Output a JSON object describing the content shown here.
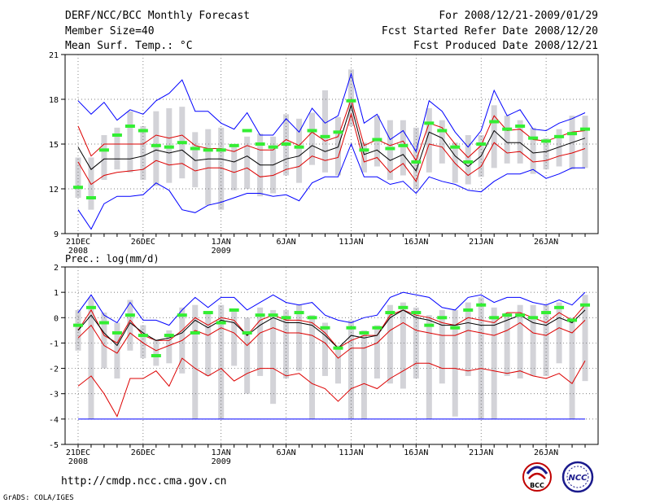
{
  "header": {
    "title": "DERF/NCC/BCC Monthly Forecast",
    "member_size": "Member Size=40",
    "variable": "Mean Surf. Temp.: °C",
    "forecast_range": "For 2008/12/21-2009/01/29",
    "start_ref": "Fcst Started Refer Date 2008/12/20",
    "produced": "Fcst Produced Date 2008/12/21"
  },
  "footer": {
    "url": "http://cmdp.ncc.cma.gov.cn",
    "credit": "GrADS: COLA/IGES",
    "logo1_text": "BCC",
    "logo2_text": "NCC"
  },
  "colors": {
    "blue": "#0000ff",
    "red": "#dd0000",
    "black": "#000000",
    "green": "#33ee33",
    "bar": "#d3d3d8",
    "grid": "#555555"
  },
  "chart_data": [
    {
      "type": "line",
      "title": "Mean Surf. Temp.: °C",
      "ylim": [
        9,
        21
      ],
      "yticks": [
        "9",
        "12",
        "15",
        "18",
        "21"
      ],
      "xlabels": [
        "21DEC",
        "26DEC",
        "1JAN",
        "6JAN",
        "11JAN",
        "16JAN",
        "21JAN",
        "26JAN"
      ],
      "xlabel_days": [
        1,
        6,
        12,
        17,
        22,
        27,
        32,
        37
      ],
      "xyear_labels": [
        {
          "day": 1,
          "text": "2008"
        },
        {
          "day": 12,
          "text": "2009"
        }
      ],
      "series": [
        {
          "name": "max",
          "color": "blue",
          "values": [
            17.9,
            17.0,
            17.8,
            16.6,
            17.3,
            17.0,
            17.9,
            18.4,
            19.3,
            17.2,
            17.2,
            16.4,
            16.0,
            17.1,
            15.6,
            15.6,
            16.7,
            15.8,
            17.4,
            16.4,
            16.9,
            19.7,
            16.4,
            17.0,
            15.3,
            15.9,
            14.5,
            17.9,
            17.2,
            15.8,
            14.8,
            15.9,
            18.6,
            16.9,
            17.3,
            16.0,
            15.9,
            16.4,
            16.7,
            17.1
          ]
        },
        {
          "name": "upper",
          "color": "red",
          "values": [
            16.2,
            14.2,
            15.0,
            15.0,
            15.0,
            15.0,
            15.6,
            15.4,
            15.6,
            14.9,
            14.7,
            14.7,
            14.5,
            14.9,
            14.6,
            14.6,
            15.3,
            14.9,
            15.8,
            15.2,
            15.5,
            18.0,
            14.9,
            15.3,
            14.9,
            15.2,
            13.9,
            16.4,
            16.1,
            15.0,
            14.1,
            14.9,
            16.9,
            15.9,
            16.0,
            15.3,
            15.2,
            15.5,
            15.8,
            15.9
          ]
        },
        {
          "name": "ensemble_mean",
          "color": "black",
          "values": [
            14.8,
            13.3,
            14.0,
            14.0,
            14.0,
            14.2,
            14.6,
            14.4,
            14.6,
            13.9,
            14.0,
            14.0,
            13.8,
            14.2,
            13.6,
            13.6,
            14.0,
            14.2,
            14.9,
            14.5,
            14.8,
            17.6,
            14.3,
            14.6,
            13.9,
            14.3,
            13.2,
            15.8,
            15.4,
            14.2,
            13.5,
            14.2,
            15.9,
            15.1,
            15.1,
            14.4,
            14.5,
            14.8,
            15.1,
            15.4
          ]
        },
        {
          "name": "lower",
          "color": "red",
          "values": [
            13.8,
            12.3,
            12.9,
            13.1,
            13.2,
            13.3,
            13.9,
            13.6,
            13.7,
            13.2,
            13.4,
            13.4,
            13.1,
            13.4,
            12.8,
            12.9,
            13.3,
            13.5,
            14.2,
            13.9,
            14.1,
            17.0,
            13.8,
            14.1,
            13.1,
            13.7,
            12.5,
            15.0,
            14.8,
            13.7,
            12.9,
            13.5,
            15.1,
            14.4,
            14.5,
            13.8,
            13.9,
            14.2,
            14.4,
            14.7
          ]
        },
        {
          "name": "min",
          "color": "blue",
          "values": [
            10.6,
            9.3,
            11.0,
            11.5,
            11.5,
            11.6,
            12.4,
            11.9,
            10.6,
            10.4,
            10.9,
            11.1,
            11.4,
            11.7,
            11.7,
            11.5,
            11.6,
            11.2,
            12.4,
            12.8,
            12.8,
            15.0,
            12.8,
            12.8,
            12.3,
            12.5,
            11.7,
            12.8,
            12.5,
            12.3,
            11.9,
            11.8,
            12.5,
            13.0,
            13.0,
            13.3,
            12.7,
            13.0,
            13.4,
            13.4
          ]
        },
        {
          "name": "observed",
          "color": "green",
          "values": [
            12.1,
            11.4,
            14.6,
            15.6,
            16.2,
            15.9,
            14.9,
            14.8,
            15.1,
            14.7,
            14.6,
            14.6,
            14.9,
            15.9,
            15.0,
            14.8,
            15.0,
            14.8,
            15.9,
            15.5,
            15.8,
            17.9,
            14.6,
            15.3,
            14.7,
            14.9,
            13.8,
            16.4,
            15.9,
            14.8,
            13.8,
            15.0,
            16.5,
            16.0,
            16.2,
            15.4,
            15.2,
            15.5,
            15.7,
            16.0
          ]
        }
      ],
      "bars_low": [
        11.4,
        10.6,
        12.6,
        13.3,
        13.1,
        12.6,
        12.2,
        12.4,
        12.7,
        12.1,
        10.9,
        10.6,
        11.9,
        12.0,
        11.5,
        11.7,
        12.9,
        12.4,
        13.6,
        13.1,
        12.9,
        16.2,
        13.1,
        13.5,
        12.6,
        12.9,
        12.0,
        13.1,
        13.7,
        12.4,
        12.3,
        12.8,
        13.4,
        13.7,
        13.7,
        13.0,
        13.3,
        13.5,
        13.3,
        13.4
      ],
      "bars_high": [
        14.1,
        14.1,
        15.6,
        16.1,
        17.2,
        16.2,
        17.2,
        17.4,
        17.5,
        15.8,
        16.0,
        16.1,
        14.9,
        15.5,
        15.7,
        15.5,
        17.0,
        16.7,
        17.1,
        18.6,
        16.8,
        20.0,
        15.1,
        16.9,
        16.6,
        16.6,
        16.1,
        17.4,
        16.6,
        15.1,
        15.6,
        15.6,
        17.6,
        16.9,
        16.6,
        16.1,
        15.4,
        16.0,
        16.9,
        16.9
      ]
    },
    {
      "type": "line",
      "title": "Prec.: log(mm/d)",
      "ylim": [
        -5,
        2
      ],
      "yticks": [
        "-5",
        "-4",
        "-3",
        "-2",
        "-1",
        "0",
        "1",
        "2"
      ],
      "xlabels": [
        "21DEC",
        "26DEC",
        "1JAN",
        "6JAN",
        "11JAN",
        "16JAN",
        "21JAN",
        "26JAN"
      ],
      "xlabel_days": [
        1,
        6,
        12,
        17,
        22,
        27,
        32,
        37
      ],
      "xyear_labels": [
        {
          "day": 1,
          "text": "2008"
        },
        {
          "day": 12,
          "text": "2009"
        }
      ],
      "series": [
        {
          "name": "max",
          "color": "blue",
          "values": [
            0.2,
            0.9,
            0.1,
            -0.2,
            0.6,
            -0.1,
            -0.1,
            -0.3,
            0.3,
            0.8,
            0.4,
            0.8,
            0.8,
            0.3,
            0.6,
            0.9,
            0.6,
            0.5,
            0.6,
            0.1,
            -0.1,
            -0.2,
            0.0,
            0.1,
            0.8,
            1.0,
            0.9,
            0.8,
            0.4,
            0.3,
            0.8,
            0.9,
            0.6,
            0.8,
            0.8,
            0.6,
            0.5,
            0.7,
            0.5,
            1.0
          ]
        },
        {
          "name": "upper",
          "color": "red",
          "values": [
            -0.5,
            0.3,
            -0.7,
            -1.0,
            -0.1,
            -0.7,
            -0.9,
            -0.9,
            -0.5,
            0.0,
            -0.3,
            0.0,
            -0.1,
            -0.7,
            -0.1,
            0.1,
            -0.1,
            -0.1,
            -0.2,
            -0.6,
            -1.2,
            -0.9,
            -0.7,
            -0.7,
            0.1,
            0.3,
            0.1,
            0.0,
            -0.2,
            -0.3,
            0.0,
            -0.1,
            -0.2,
            0.2,
            0.2,
            0.0,
            -0.2,
            0.2,
            -0.1,
            0.5
          ]
        },
        {
          "name": "ensemble_mean",
          "color": "black",
          "values": [
            -0.5,
            0.1,
            -0.6,
            -1.1,
            -0.2,
            -0.6,
            -0.9,
            -0.8,
            -0.6,
            -0.1,
            -0.4,
            -0.1,
            -0.2,
            -0.7,
            -0.3,
            0.0,
            -0.2,
            -0.2,
            -0.3,
            -0.7,
            -1.2,
            -0.7,
            -0.8,
            -0.7,
            0.0,
            0.3,
            0.0,
            -0.1,
            -0.3,
            -0.3,
            -0.2,
            -0.3,
            -0.3,
            -0.1,
            0.1,
            -0.2,
            -0.3,
            0.0,
            -0.2,
            0.3
          ]
        },
        {
          "name": "lower",
          "color": "red",
          "values": [
            -0.8,
            -0.3,
            -1.1,
            -1.4,
            -0.6,
            -1.0,
            -1.3,
            -1.1,
            -0.9,
            -0.5,
            -0.7,
            -0.4,
            -0.6,
            -1.1,
            -0.6,
            -0.4,
            -0.6,
            -0.6,
            -0.7,
            -1.0,
            -1.6,
            -1.2,
            -1.2,
            -1.0,
            -0.5,
            -0.2,
            -0.5,
            -0.6,
            -0.7,
            -0.7,
            -0.5,
            -0.6,
            -0.7,
            -0.5,
            -0.2,
            -0.6,
            -0.7,
            -0.4,
            -0.6,
            -0.1
          ]
        },
        {
          "name": "min",
          "color": "red",
          "values": [
            -2.7,
            -2.3,
            -3.0,
            -3.9,
            -2.4,
            -2.4,
            -2.1,
            -2.7,
            -1.6,
            -2.0,
            -2.3,
            -2.0,
            -2.5,
            -2.2,
            -2.0,
            -2.0,
            -2.3,
            -2.2,
            -2.6,
            -2.8,
            -3.3,
            -2.8,
            -2.6,
            -2.8,
            -2.4,
            -2.1,
            -1.8,
            -1.8,
            -2.0,
            -2.0,
            -2.1,
            -2.0,
            -2.1,
            -2.2,
            -2.1,
            -2.3,
            -2.4,
            -2.2,
            -2.6,
            -1.7
          ]
        },
        {
          "name": "observed",
          "color": "green",
          "values": [
            -0.3,
            0.4,
            -0.2,
            -0.6,
            0.1,
            -0.7,
            -1.5,
            -0.7,
            0.1,
            -0.6,
            0.2,
            -0.2,
            0.3,
            -0.6,
            0.1,
            0.1,
            0.0,
            0.2,
            0.0,
            -0.4,
            -1.2,
            -0.4,
            -0.6,
            -0.4,
            0.2,
            0.4,
            0.2,
            -0.3,
            0.0,
            -0.4,
            0.3,
            0.5,
            0.0,
            0.1,
            0.1,
            0.0,
            0.2,
            0.4,
            -0.1,
            0.5
          ]
        }
      ],
      "floor_line": {
        "value": -4,
        "color": "blue"
      },
      "bars_low": [
        -1.3,
        -4.0,
        -2.0,
        -2.4,
        -1.3,
        -1.6,
        -1.9,
        -1.8,
        -2.2,
        -4.0,
        -2.3,
        -4.0,
        -1.9,
        -3.0,
        -2.3,
        -3.4,
        -2.4,
        -2.1,
        -4.0,
        -2.3,
        -2.6,
        -4.0,
        -4.0,
        -2.4,
        -2.6,
        -2.8,
        -2.4,
        -4.0,
        -2.6,
        -3.9,
        -2.3,
        -4.0,
        -4.0,
        -2.3,
        -2.4,
        -2.3,
        -2.3,
        -1.8,
        -4.0,
        -2.5
      ],
      "bars_high": [
        0.3,
        0.8,
        0.2,
        -0.2,
        0.7,
        -0.3,
        -0.9,
        -0.5,
        0.4,
        0.5,
        0.2,
        0.5,
        0.3,
        0.0,
        0.4,
        0.3,
        0.3,
        0.5,
        0.1,
        -0.2,
        -1.1,
        -0.1,
        -0.5,
        -0.3,
        0.5,
        0.6,
        0.4,
        0.1,
        0.3,
        0.3,
        0.6,
        0.8,
        0.4,
        0.2,
        0.5,
        0.5,
        0.5,
        0.6,
        0.0,
        0.9
      ]
    }
  ]
}
